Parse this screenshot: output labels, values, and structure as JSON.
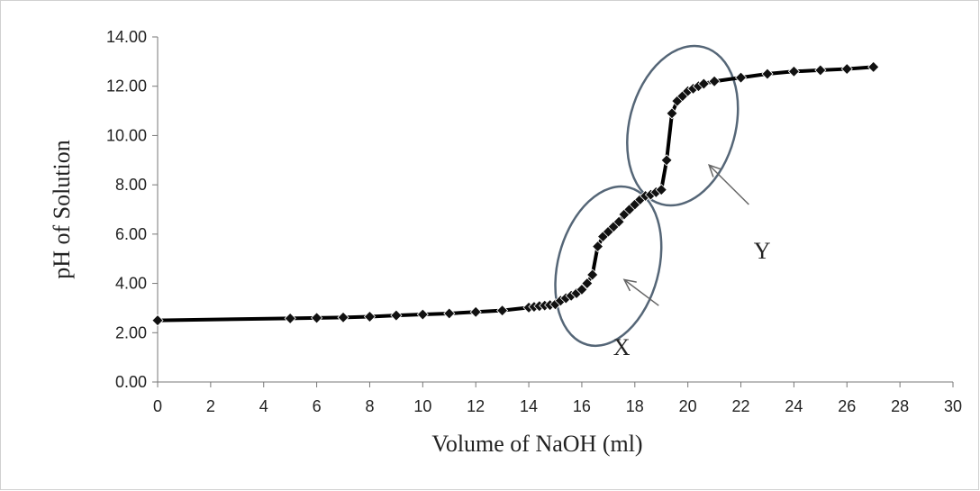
{
  "chart_data": {
    "type": "scatter",
    "title": "",
    "xlabel": "Volume of NaOH (ml)",
    "ylabel": "pH of Solution",
    "xlim": [
      0,
      30
    ],
    "ylim": [
      0,
      14
    ],
    "x_ticks": [
      "0",
      "2",
      "4",
      "6",
      "8",
      "10",
      "12",
      "14",
      "16",
      "18",
      "20",
      "22",
      "24",
      "26",
      "28",
      "30"
    ],
    "y_ticks": [
      "0.00",
      "2.00",
      "4.00",
      "6.00",
      "8.00",
      "10.00",
      "12.00",
      "14.00"
    ],
    "grid": false,
    "legend": "none",
    "series": [
      {
        "x": [
          0,
          5,
          6,
          7,
          8,
          9,
          10,
          11,
          12,
          13,
          14,
          14.2,
          14.4,
          14.6,
          14.8,
          15,
          15.2,
          15.4,
          15.6,
          15.8,
          16,
          16.2,
          16.4,
          16.6,
          16.8,
          17,
          17.2,
          17.4,
          17.6,
          17.8,
          18,
          18.2,
          18.4,
          18.6,
          18.8,
          19,
          19.2,
          19.4,
          19.6,
          19.8,
          20,
          20.2,
          20.4,
          20.6,
          21,
          22,
          23,
          24,
          25,
          26,
          27
        ],
        "y": [
          2.5,
          2.58,
          2.6,
          2.62,
          2.65,
          2.7,
          2.74,
          2.78,
          2.84,
          2.9,
          3.02,
          3.05,
          3.08,
          3.1,
          3.12,
          3.15,
          3.3,
          3.4,
          3.5,
          3.6,
          3.75,
          4.0,
          4.35,
          5.5,
          5.9,
          6.1,
          6.3,
          6.5,
          6.8,
          7.0,
          7.2,
          7.4,
          7.55,
          7.6,
          7.7,
          7.8,
          9.0,
          10.9,
          11.4,
          11.6,
          11.8,
          11.9,
          12.0,
          12.1,
          12.2,
          12.35,
          12.5,
          12.6,
          12.65,
          12.7,
          12.78
        ]
      }
    ],
    "color": "#000000"
  },
  "annotations": [
    {
      "label": "X",
      "x": 17.5,
      "y": 1.1
    },
    {
      "label": "Y",
      "x": 22.8,
      "y": 5.0
    }
  ],
  "ellipses": [
    {
      "cx": 17.0,
      "cy": 4.7,
      "rx": 1.9,
      "ry": 3.3,
      "angle": 15
    },
    {
      "cx": 19.8,
      "cy": 10.4,
      "rx": 2.0,
      "ry": 3.3,
      "angle": 15
    }
  ],
  "arrows": [
    {
      "from": [
        18.9,
        3.1
      ],
      "to": [
        17.6,
        4.15
      ]
    },
    {
      "from": [
        22.3,
        7.2
      ],
      "to": [
        20.8,
        8.8
      ]
    }
  ]
}
